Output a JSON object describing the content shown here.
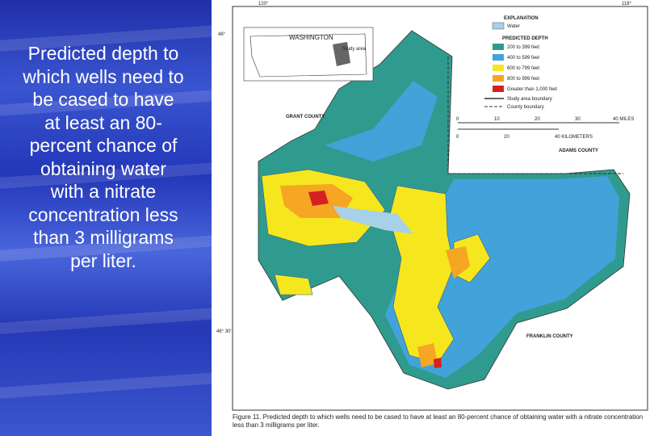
{
  "slide": {
    "text": "Predicted depth to which wells need to be cased to have at least an 80-percent chance of obtaining water with a nitrate concentration less than 3 milligrams per liter."
  },
  "map": {
    "coordinates": [
      "120°",
      "118°",
      "48°",
      "46° 30'"
    ],
    "inset": {
      "state": "WASHINGTON",
      "study_area": "Study area"
    },
    "legend": {
      "title": "EXPLANATION",
      "water": "Water",
      "subtitle": "PREDICTED DEPTH",
      "items": [
        "200 to 399 feet",
        "400 to 599 feet",
        "600 to 799 feet",
        "800 to 999 feet",
        "Greater than 1,000 feet"
      ],
      "lines": [
        "Study area boundary",
        "County boundary"
      ]
    },
    "scale": {
      "miles": [
        "0",
        "10",
        "20",
        "30",
        "40 MILES"
      ],
      "kilometers": [
        "0",
        "20",
        "40 KILOMETERS"
      ]
    },
    "counties": [
      "GRANT COUNTY",
      "ADAMS COUNTY",
      "FRANKLIN COUNTY"
    ],
    "caption": "Figure 11. Predicted depth to which wells need to be cased to have at least an 80-percent chance of obtaining water with a nitrate concentration less than 3 milligrams per liter."
  }
}
